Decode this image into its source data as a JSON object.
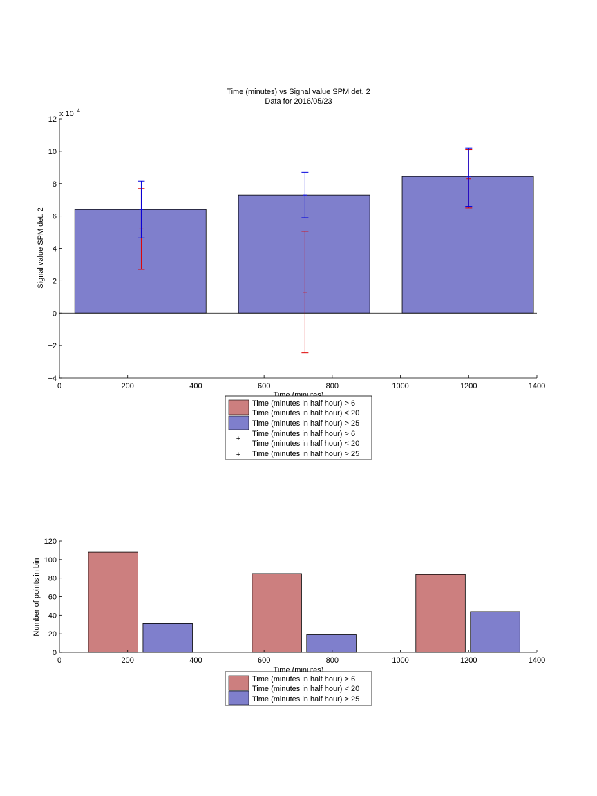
{
  "colors": {
    "short_bin": "#cc7f7f",
    "long_bin": "#7f7fcc",
    "short_err": "#dd0000",
    "long_err": "#0000dd"
  },
  "legend_lines": {
    "series_a_line1": "Time (minutes in half hour) > 6",
    "series_a_line2": "Time (minutes in half hour) < 20",
    "series_b": "Time (minutes in half hour) > 25"
  },
  "chart_data": [
    {
      "type": "bar",
      "title": "Time (minutes) vs Signal value SPM det. 2",
      "subtitle": "Data for 2016/05/23",
      "xlabel": "Time (minutes)",
      "ylabel": "Signal value SPM det. 2",
      "y_exponent_label": "x 10",
      "y_exponent": "−4",
      "xlim": [
        0,
        1400
      ],
      "ylim": [
        -4,
        12
      ],
      "xticks": [
        "0",
        "200",
        "400",
        "600",
        "800",
        "1000",
        "1200",
        "1400"
      ],
      "yticks": [
        "−4",
        "−2",
        "0",
        "2",
        "4",
        "6",
        "8",
        "10",
        "12"
      ],
      "bars": [
        {
          "x": [
            45,
            430
          ],
          "value": 6.4
        },
        {
          "x": [
            525,
            910
          ],
          "value": 7.3
        },
        {
          "x": [
            1005,
            1390
          ],
          "value": 8.45
        }
      ],
      "errorbars": [
        {
          "series": "short",
          "x": 240,
          "center": 5.2,
          "low": 2.7,
          "high": 7.7
        },
        {
          "series": "long",
          "x": 240,
          "center": 6.4,
          "low": 4.65,
          "high": 8.15
        },
        {
          "series": "short",
          "x": 720,
          "center": 1.3,
          "low": -2.45,
          "high": 5.05
        },
        {
          "series": "long",
          "x": 720,
          "center": 7.3,
          "low": 5.9,
          "high": 8.7
        },
        {
          "series": "short",
          "x": 1200,
          "center": 8.3,
          "low": 6.5,
          "high": 10.1
        },
        {
          "series": "long",
          "x": 1200,
          "center": 8.45,
          "low": 6.6,
          "high": 10.2
        }
      ]
    },
    {
      "type": "bar",
      "xlabel": "Time (minutes)",
      "ylabel": "Number of points in bin",
      "xlim": [
        0,
        1400
      ],
      "ylim": [
        0,
        120
      ],
      "xticks": [
        "0",
        "200",
        "400",
        "600",
        "800",
        "1000",
        "1200",
        "1400"
      ],
      "yticks": [
        "0",
        "20",
        "40",
        "60",
        "80",
        "100",
        "120"
      ],
      "bars": [
        {
          "series": "short",
          "x": [
            85,
            230
          ],
          "value": 108
        },
        {
          "series": "long",
          "x": [
            245,
            390
          ],
          "value": 31
        },
        {
          "series": "short",
          "x": [
            565,
            710
          ],
          "value": 85
        },
        {
          "series": "long",
          "x": [
            725,
            870
          ],
          "value": 19
        },
        {
          "series": "short",
          "x": [
            1045,
            1190
          ],
          "value": 84
        },
        {
          "series": "long",
          "x": [
            1205,
            1350
          ],
          "value": 44
        }
      ]
    }
  ]
}
